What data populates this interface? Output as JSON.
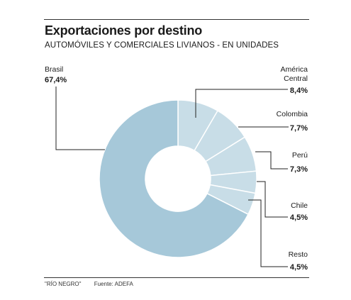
{
  "header": {
    "title": "Exportaciones por destino",
    "subtitle": "AUTOMÓVILES Y COMERCIALES LIVIANOS - EN UNIDADES"
  },
  "footer": {
    "newspaper": "\"RÍO NEGRO\"",
    "source": "Fuente: ADEFA"
  },
  "colors": {
    "main": "#a6c8d9",
    "others": "#c8dde7",
    "separator": "#ffffff",
    "leader": "#222222",
    "text": "#1a1a1a"
  },
  "chart_data": {
    "type": "pie",
    "donut": true,
    "title": "Exportaciones por destino",
    "subtitle": "AUTOMÓVILES Y COMERCIALES LIVIANOS - EN UNIDADES",
    "unit": "%",
    "slices": [
      {
        "label": "América Central",
        "value": 8.4,
        "value_label": "8,4%"
      },
      {
        "label": "Colombia",
        "value": 7.7,
        "value_label": "7,7%"
      },
      {
        "label": "Perú",
        "value": 7.3,
        "value_label": "7,3%"
      },
      {
        "label": "Chile",
        "value": 4.5,
        "value_label": "4,5%"
      },
      {
        "label": "Resto",
        "value": 4.5,
        "value_label": "4,5%"
      },
      {
        "label": "Brasil",
        "value": 67.4,
        "value_label": "67,4%"
      }
    ]
  }
}
